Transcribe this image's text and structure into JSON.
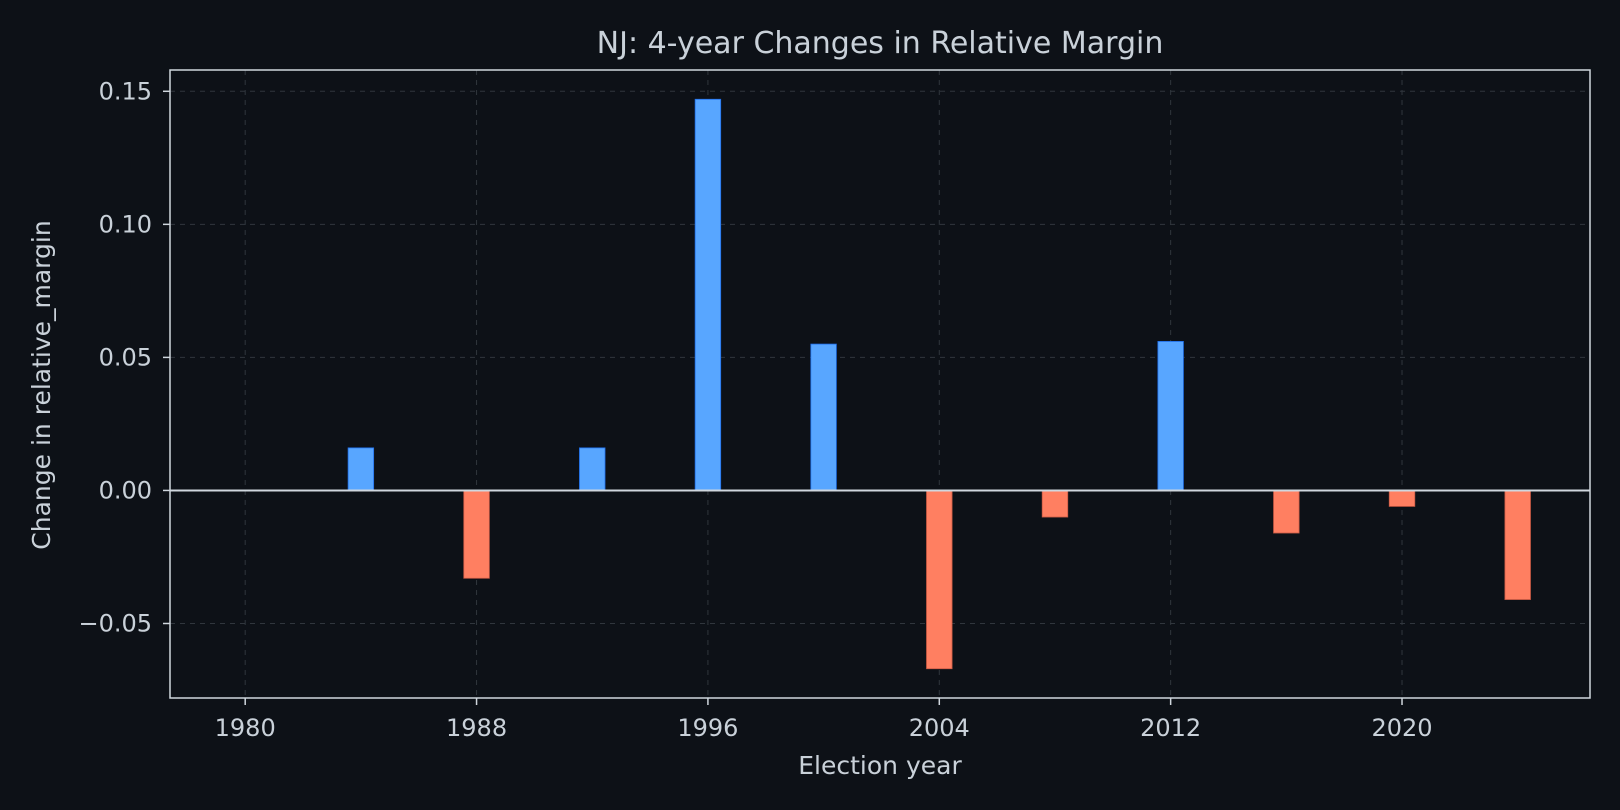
{
  "chart_data": {
    "type": "bar",
    "title": "NJ: 4-year Changes in Relative Margin",
    "xlabel": "Election year",
    "ylabel": "Change in relative_margin",
    "x": [
      1984,
      1988,
      1992,
      1996,
      2000,
      2004,
      2008,
      2012,
      2016,
      2020,
      2024
    ],
    "values": [
      0.016,
      -0.033,
      0.016,
      0.147,
      0.055,
      -0.067,
      -0.01,
      0.056,
      -0.016,
      -0.006,
      -0.041
    ],
    "xticks": [
      "1980",
      "1988",
      "1996",
      "2004",
      "2012",
      "2020"
    ],
    "yticks": [
      "0.15",
      "0.10",
      "0.05",
      "0.00",
      "−0.05"
    ],
    "xlim": [
      1977.4,
      2026.5
    ],
    "ylim": [
      -0.078,
      0.158
    ],
    "grid": true,
    "colors": {
      "background": "#0d1117",
      "positive": "#58a6ff",
      "negative": "#ff7f61",
      "text": "#c9d1d9",
      "axes": "#d0d7de",
      "grid": "#30363d"
    }
  }
}
